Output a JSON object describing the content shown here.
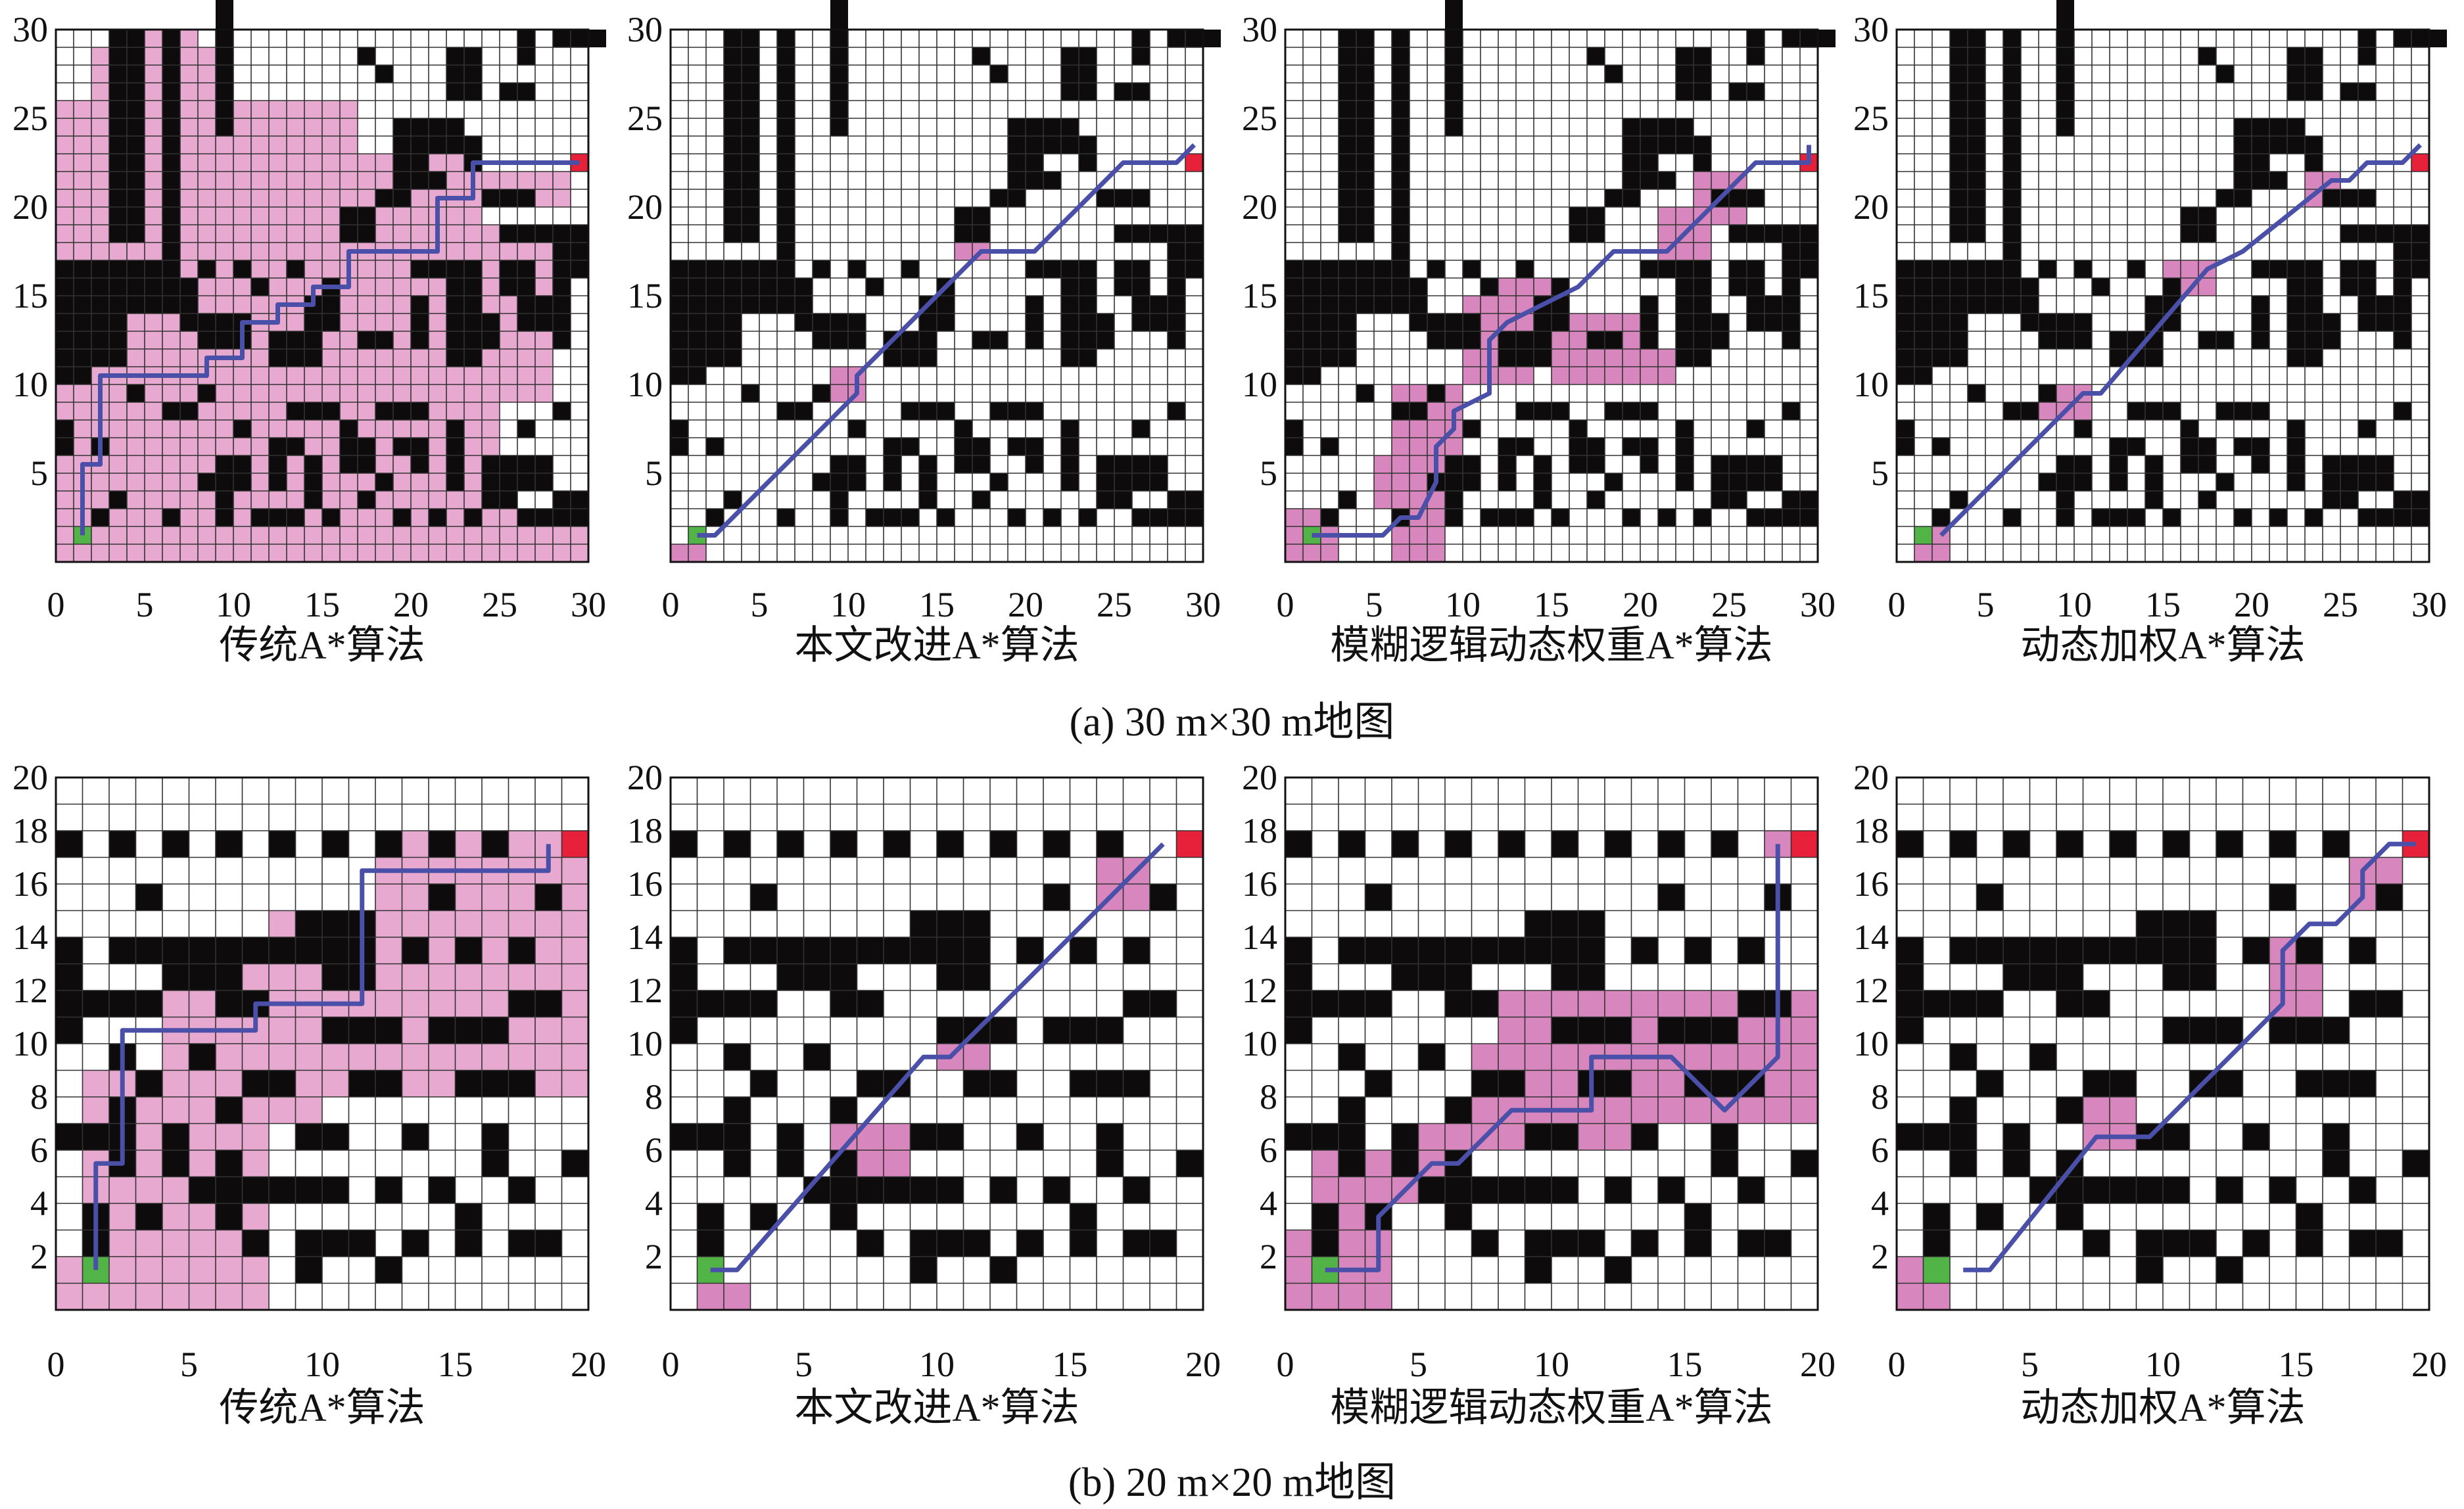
{
  "figure": {
    "sections": [
      {
        "caption": "(a)  30 m×30 m地图",
        "grid_size": 30,
        "panels": [
          {
            "title": "传统A*算法",
            "x_ticks": [
              "0",
              "5",
              "10",
              "15",
              "20",
              "25",
              "30"
            ],
            "y_ticks": [
              "5",
              "10",
              "15",
              "20",
              "25",
              "30"
            ]
          },
          {
            "title": "本文改进A*算法",
            "x_ticks": [
              "0",
              "5",
              "10",
              "15",
              "20",
              "25",
              "30"
            ],
            "y_ticks": [
              "5",
              "10",
              "15",
              "20",
              "25",
              "30"
            ]
          },
          {
            "title": "模糊逻辑动态权重A*算法",
            "x_ticks": [
              "0",
              "5",
              "10",
              "15",
              "20",
              "25",
              "30"
            ],
            "y_ticks": [
              "5",
              "10",
              "15",
              "20",
              "25",
              "30"
            ]
          },
          {
            "title": "动态加权A*算法",
            "x_ticks": [
              "0",
              "5",
              "10",
              "15",
              "20",
              "25",
              "30"
            ],
            "y_ticks": [
              "5",
              "10",
              "15",
              "20",
              "25",
              "30"
            ]
          }
        ]
      },
      {
        "caption": "(b)  20 m×20 m地图",
        "grid_size": 20,
        "panels": [
          {
            "title": "传统A*算法",
            "x_ticks": [
              "0",
              "5",
              "10",
              "15",
              "20"
            ],
            "y_ticks": [
              "2",
              "4",
              "6",
              "8",
              "10",
              "12",
              "14",
              "16",
              "18",
              "20"
            ]
          },
          {
            "title": "本文改进A*算法",
            "x_ticks": [
              "0",
              "5",
              "10",
              "15",
              "20"
            ],
            "y_ticks": [
              "2",
              "4",
              "6",
              "8",
              "10",
              "12",
              "14",
              "16",
              "18",
              "20"
            ]
          },
          {
            "title": "模糊逻辑动态权重A*算法",
            "x_ticks": [
              "0",
              "5",
              "10",
              "15",
              "20"
            ],
            "y_ticks": [
              "2",
              "4",
              "6",
              "8",
              "10",
              "12",
              "14",
              "16",
              "18",
              "20"
            ]
          },
          {
            "title": "动态加权A*算法",
            "x_ticks": [
              "0",
              "5",
              "10",
              "15",
              "20"
            ],
            "y_ticks": [
              "2",
              "4",
              "6",
              "8",
              "10",
              "12",
              "14",
              "16",
              "18",
              "20"
            ]
          }
        ]
      }
    ],
    "colors": {
      "obstacle": "#0d0b0c",
      "free": "#ffffff",
      "grid_line": "#333333",
      "explored": "#e8a9d1",
      "explored_dense": "#d787bd",
      "path": "#4a4fa8",
      "start": "#52b447",
      "goal": "#e8213a"
    },
    "maps": {
      "30": {
        "obstacles": [
          [
            3,
            18,
            2,
            12
          ],
          [
            6,
            17,
            1,
            13
          ],
          [
            9,
            24,
            1,
            10
          ],
          [
            16,
            18,
            2,
            2
          ],
          [
            19,
            23,
            4,
            2
          ],
          [
            19,
            21,
            2,
            2
          ],
          [
            22,
            26,
            2,
            3
          ],
          [
            26,
            28,
            1,
            2
          ],
          [
            25,
            26,
            2,
            1
          ],
          [
            28,
            29,
            3,
            1
          ],
          [
            17,
            28,
            1,
            1
          ],
          [
            18,
            27,
            1,
            1
          ],
          [
            21,
            21,
            1,
            1
          ],
          [
            23,
            22,
            1,
            2
          ],
          [
            24,
            20,
            3,
            1
          ],
          [
            18,
            20,
            2,
            1
          ],
          [
            25,
            18,
            3,
            1
          ],
          [
            28,
            16,
            2,
            3
          ],
          [
            0,
            13,
            4,
            4
          ],
          [
            4,
            14,
            2,
            3
          ],
          [
            6,
            14,
            2,
            2
          ],
          [
            2,
            11,
            2,
            2
          ],
          [
            7,
            13,
            3,
            1
          ],
          [
            8,
            12,
            2,
            1
          ],
          [
            10,
            12,
            1,
            2
          ],
          [
            0,
            10,
            2,
            3
          ],
          [
            12,
            11,
            3,
            2
          ],
          [
            14,
            13,
            2,
            2
          ],
          [
            17,
            12,
            2,
            1
          ],
          [
            20,
            12,
            1,
            3
          ],
          [
            22,
            11,
            2,
            5
          ],
          [
            24,
            12,
            1,
            2
          ],
          [
            26,
            13,
            2,
            2
          ],
          [
            25,
            15,
            2,
            2
          ],
          [
            28,
            12,
            1,
            4
          ],
          [
            20,
            16,
            4,
            1
          ],
          [
            11,
            15,
            1,
            1
          ],
          [
            13,
            16,
            1,
            1
          ],
          [
            15,
            15,
            1,
            1
          ],
          [
            0,
            15,
            1,
            1
          ],
          [
            2,
            16,
            1,
            1
          ],
          [
            4,
            16,
            1,
            1
          ],
          [
            6,
            16,
            1,
            1
          ],
          [
            8,
            16,
            1,
            1
          ],
          [
            10,
            16,
            1,
            1
          ],
          [
            4,
            9,
            1,
            1
          ],
          [
            6,
            8,
            2,
            1
          ],
          [
            8,
            9,
            1,
            1
          ],
          [
            13,
            8,
            2,
            1
          ],
          [
            15,
            8,
            1,
            1
          ],
          [
            18,
            8,
            3,
            1
          ],
          [
            10,
            7,
            1,
            1
          ],
          [
            16,
            7,
            1,
            1
          ],
          [
            12,
            6,
            2,
            1
          ],
          [
            19,
            6,
            1,
            1
          ],
          [
            22,
            7,
            1,
            1
          ],
          [
            26,
            7,
            1,
            1
          ],
          [
            28,
            8,
            1,
            1
          ],
          [
            0,
            6,
            1,
            2
          ],
          [
            2,
            6,
            1,
            1
          ],
          [
            9,
            5,
            2,
            1
          ],
          [
            12,
            5,
            1,
            2
          ],
          [
            14,
            5,
            1,
            1
          ],
          [
            16,
            5,
            2,
            2
          ],
          [
            20,
            5,
            1,
            2
          ],
          [
            22,
            4,
            1,
            3
          ],
          [
            24,
            4,
            4,
            2
          ],
          [
            24,
            3,
            2,
            1
          ],
          [
            3,
            3,
            1,
            1
          ],
          [
            8,
            4,
            2,
            1
          ],
          [
            10,
            4,
            1,
            1
          ],
          [
            12,
            4,
            1,
            1
          ],
          [
            14,
            3,
            1,
            2
          ],
          [
            18,
            4,
            1,
            1
          ],
          [
            6,
            2,
            1,
            1
          ],
          [
            9,
            2,
            1,
            2
          ],
          [
            11,
            2,
            2,
            1
          ],
          [
            13,
            2,
            1,
            1
          ],
          [
            15,
            2,
            1,
            1
          ],
          [
            17,
            3,
            1,
            1
          ],
          [
            19,
            2,
            1,
            1
          ],
          [
            21,
            2,
            1,
            1
          ],
          [
            23,
            2,
            1,
            1
          ],
          [
            26,
            2,
            4,
            1
          ],
          [
            2,
            2,
            1,
            1
          ],
          [
            28,
            3,
            2,
            1
          ]
        ],
        "start": [
          1,
          1
        ],
        "goal": [
          29,
          22
        ]
      },
      "20": {
        "obstacles": [
          [
            0,
            17,
            1,
            1
          ],
          [
            2,
            17,
            1,
            1
          ],
          [
            4,
            17,
            1,
            1
          ],
          [
            6,
            17,
            1,
            1
          ],
          [
            8,
            17,
            1,
            1
          ],
          [
            10,
            17,
            1,
            1
          ],
          [
            12,
            17,
            1,
            1
          ],
          [
            14,
            17,
            1,
            1
          ],
          [
            16,
            17,
            1,
            1
          ],
          [
            3,
            15,
            1,
            1
          ],
          [
            14,
            15,
            1,
            1
          ],
          [
            18,
            15,
            1,
            1
          ],
          [
            0,
            13,
            1,
            1
          ],
          [
            2,
            13,
            6,
            1
          ],
          [
            4,
            12,
            3,
            1
          ],
          [
            8,
            13,
            1,
            1
          ],
          [
            9,
            13,
            3,
            2
          ],
          [
            10,
            12,
            2,
            1
          ],
          [
            13,
            13,
            1,
            1
          ],
          [
            15,
            13,
            1,
            1
          ],
          [
            17,
            13,
            1,
            1
          ],
          [
            0,
            10,
            1,
            3
          ],
          [
            1,
            11,
            3,
            1
          ],
          [
            6,
            11,
            2,
            1
          ],
          [
            10,
            10,
            3,
            1
          ],
          [
            14,
            10,
            3,
            1
          ],
          [
            17,
            11,
            2,
            1
          ],
          [
            2,
            9,
            1,
            1
          ],
          [
            5,
            9,
            1,
            1
          ],
          [
            3,
            8,
            1,
            1
          ],
          [
            7,
            8,
            2,
            1
          ],
          [
            11,
            8,
            2,
            1
          ],
          [
            15,
            8,
            3,
            1
          ],
          [
            0,
            6,
            2,
            1
          ],
          [
            2,
            5,
            1,
            3
          ],
          [
            6,
            7,
            1,
            1
          ],
          [
            9,
            6,
            2,
            1
          ],
          [
            13,
            6,
            1,
            1
          ],
          [
            16,
            6,
            1,
            1
          ],
          [
            4,
            6,
            1,
            1
          ],
          [
            5,
            4,
            1,
            1
          ],
          [
            6,
            3,
            1,
            3
          ],
          [
            7,
            4,
            3,
            1
          ],
          [
            10,
            4,
            1,
            1
          ],
          [
            12,
            4,
            1,
            1
          ],
          [
            14,
            4,
            1,
            1
          ],
          [
            17,
            4,
            1,
            1
          ],
          [
            19,
            5,
            1,
            1
          ],
          [
            1,
            2,
            1,
            2
          ],
          [
            3,
            3,
            1,
            1
          ],
          [
            7,
            2,
            1,
            1
          ],
          [
            11,
            2,
            1,
            1
          ],
          [
            13,
            2,
            1,
            1
          ],
          [
            15,
            2,
            1,
            2
          ],
          [
            17,
            2,
            2,
            1
          ],
          [
            9,
            1,
            1,
            2
          ],
          [
            10,
            2,
            1,
            1
          ],
          [
            12,
            1,
            1,
            1
          ],
          [
            4,
            5,
            1,
            1
          ],
          [
            16,
            5,
            1,
            1
          ]
        ],
        "start": [
          1,
          1
        ],
        "goal": [
          19,
          17
        ]
      }
    }
  }
}
